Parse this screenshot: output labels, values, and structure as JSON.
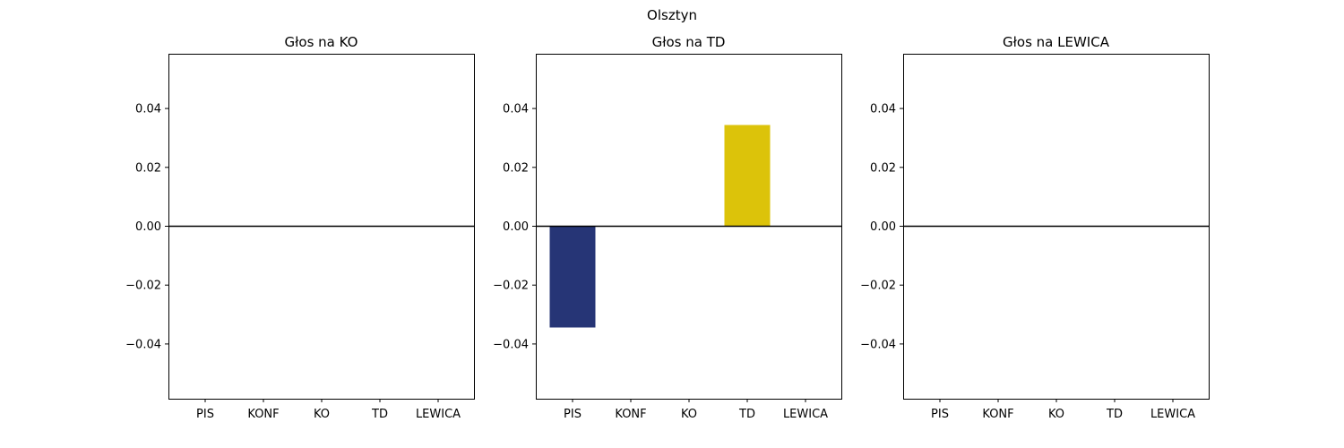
{
  "figure": {
    "suptitle": "Olsztyn"
  },
  "chart_data": [
    {
      "type": "bar",
      "title": "Głos na KO",
      "categories": [
        "PIS",
        "KONF",
        "KO",
        "TD",
        "LEWICA"
      ],
      "values": [
        0,
        0,
        0,
        0,
        0
      ],
      "colors": [
        "#263576",
        "#1a1a1a",
        "#e6a200",
        "#dcc30a",
        "#c8102e"
      ],
      "xlabel": "",
      "ylabel": "",
      "ylim": [
        -0.0586,
        0.0586
      ],
      "yticks": [
        -0.04,
        -0.02,
        0.0,
        0.02,
        0.04
      ],
      "ytick_labels": [
        "−0.04",
        "−0.02",
        "0.00",
        "0.02",
        "0.04"
      ],
      "zero_line": true,
      "grid": false
    },
    {
      "type": "bar",
      "title": "Głos na TD",
      "categories": [
        "PIS",
        "KONF",
        "KO",
        "TD",
        "LEWICA"
      ],
      "values": [
        -0.0344,
        0,
        0,
        0.0344,
        0
      ],
      "colors": [
        "#263576",
        "#1a1a1a",
        "#e6a200",
        "#dcc30a",
        "#c8102e"
      ],
      "xlabel": "",
      "ylabel": "",
      "ylim": [
        -0.0586,
        0.0586
      ],
      "yticks": [
        -0.04,
        -0.02,
        0.0,
        0.02,
        0.04
      ],
      "ytick_labels": [
        "−0.04",
        "−0.02",
        "0.00",
        "0.02",
        "0.04"
      ],
      "zero_line": true,
      "grid": false
    },
    {
      "type": "bar",
      "title": "Głos na LEWICA",
      "categories": [
        "PIS",
        "KONF",
        "KO",
        "TD",
        "LEWICA"
      ],
      "values": [
        0,
        0,
        0,
        0,
        0
      ],
      "colors": [
        "#263576",
        "#1a1a1a",
        "#e6a200",
        "#dcc30a",
        "#c8102e"
      ],
      "xlabel": "",
      "ylabel": "",
      "ylim": [
        -0.0586,
        0.0586
      ],
      "yticks": [
        -0.04,
        -0.02,
        0.0,
        0.02,
        0.04
      ],
      "ytick_labels": [
        "−0.04",
        "−0.02",
        "0.00",
        "0.02",
        "0.04"
      ],
      "zero_line": true,
      "grid": false
    }
  ]
}
